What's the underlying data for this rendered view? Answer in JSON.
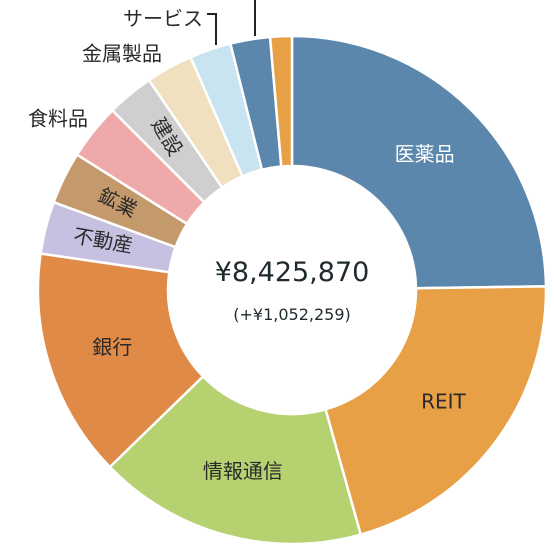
{
  "chart_data": {
    "type": "pie",
    "donut": true,
    "total_label": "¥8,425,870",
    "change_label": "(+¥1,052,259)",
    "slices": [
      {
        "label": "医薬品",
        "value": 21.6,
        "color": "#5b87ad",
        "label_color": "#ffffff"
      },
      {
        "label": "REIT",
        "value": 18.2,
        "color": "#e8a046",
        "label_color": "#2a2a2a"
      },
      {
        "label": "情報通信",
        "value": 14.9,
        "color": "#b5d170",
        "label_color": "#2a2a2a"
      },
      {
        "label": "銀行",
        "value": 12.7,
        "color": "#e08a48",
        "label_color": "#2a2a2a"
      },
      {
        "label": "不動産",
        "value": 2.9,
        "color": "#c8c0e0",
        "label_color": "#2a2a2a"
      },
      {
        "label": "鉱業",
        "value": 2.9,
        "color": "#c49a6c",
        "label_color": "#2a2a2a"
      },
      {
        "label": "食料品",
        "value": 3.1,
        "color": "#eeaaaa",
        "label_color": "#2a2a2a"
      },
      {
        "label": "建設",
        "value": 2.6,
        "color": "#cfcfcf",
        "label_color": "#2a2a2a"
      },
      {
        "label": "金属製品",
        "value": 2.6,
        "color": "#f0e0c0",
        "label_color": "#2a2a2a"
      },
      {
        "label": "サービス",
        "value": 2.3,
        "color": "#c8e4f0",
        "label_color": "#2a2a2a"
      },
      {
        "label": "",
        "value": 2.2,
        "color": "#5b87ad",
        "label_color": "#2a2a2a"
      },
      {
        "label": "",
        "value": 1.2,
        "color": "#e8a046",
        "label_color": "#2a2a2a"
      }
    ]
  }
}
